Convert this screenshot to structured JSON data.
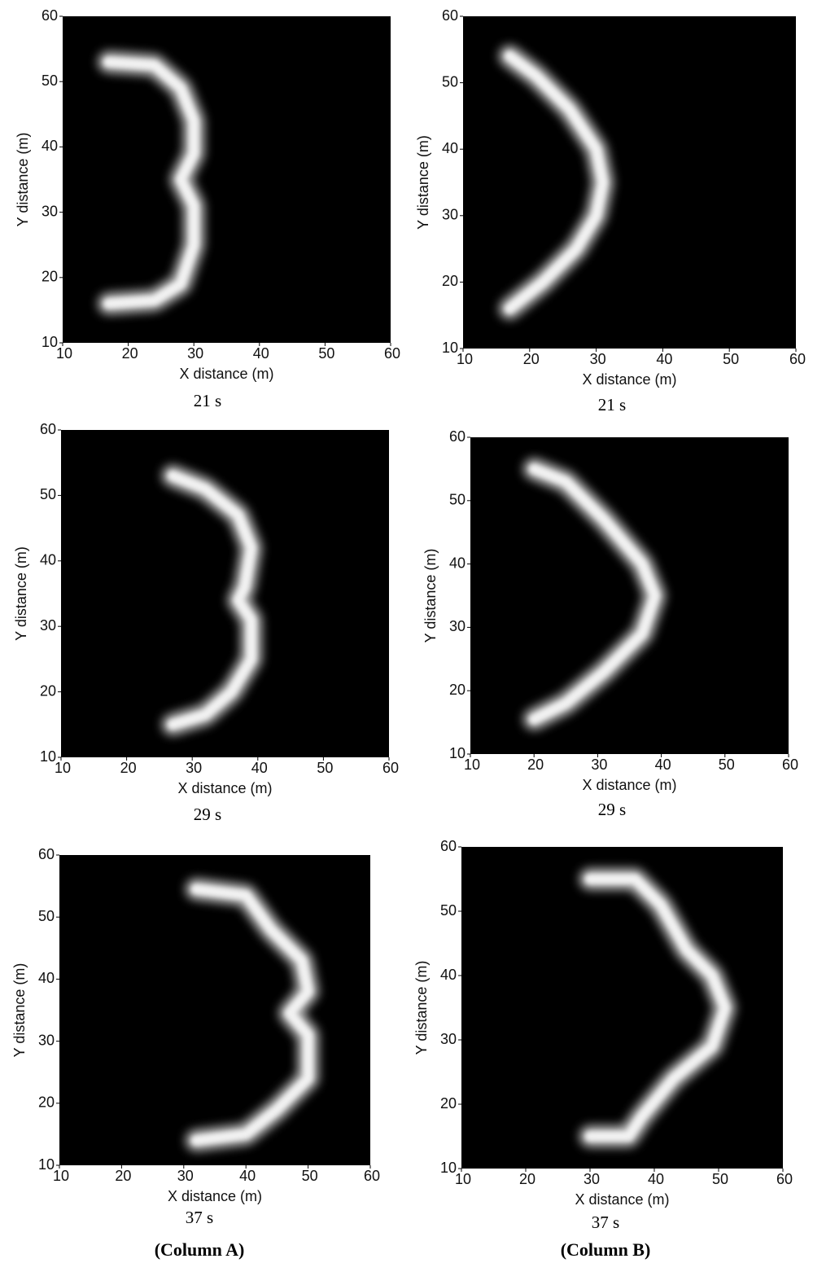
{
  "chart_data": [
    {
      "type": "line",
      "caption": "21 s",
      "x_label": "X distance (m)",
      "y_label": "Y distance (m)",
      "color": "#ffffff",
      "x": [
        17,
        24,
        28,
        30,
        30,
        28,
        30,
        30,
        28,
        24,
        17
      ],
      "values": [
        53,
        52.5,
        49,
        44,
        39,
        35,
        31,
        25,
        19,
        16.5,
        16
      ],
      "xlim": [
        10,
        60
      ],
      "ylim": [
        10,
        60
      ],
      "xticks": [
        10,
        20,
        30,
        40,
        50,
        60
      ],
      "yticks": [
        10,
        20,
        30,
        40,
        50,
        60
      ]
    },
    {
      "type": "line",
      "caption": "21 s",
      "x_label": "X distance (m)",
      "y_label": "Y distance (m)",
      "color": "#ffffff",
      "x": [
        17,
        21,
        26,
        30,
        31,
        30,
        27,
        22,
        17
      ],
      "values": [
        54,
        51,
        46,
        40,
        35,
        30,
        25,
        20,
        16
      ],
      "xlim": [
        10,
        60
      ],
      "ylim": [
        10,
        60
      ],
      "xticks": [
        10,
        20,
        30,
        40,
        50,
        60
      ],
      "yticks": [
        10,
        20,
        30,
        40,
        50,
        60
      ]
    },
    {
      "type": "line",
      "caption": "29 s",
      "x_label": "X distance (m)",
      "y_label": "Y distance (m)",
      "color": "#ffffff",
      "x": [
        27,
        32,
        37,
        39,
        38,
        37,
        39,
        39,
        36,
        32,
        27
      ],
      "values": [
        53,
        51,
        47,
        42,
        36,
        34,
        31,
        25,
        20,
        16.5,
        15
      ],
      "xlim": [
        10,
        60
      ],
      "ylim": [
        10,
        60
      ],
      "xticks": [
        10,
        20,
        30,
        40,
        50,
        60
      ],
      "yticks": [
        10,
        20,
        30,
        40,
        50,
        60
      ]
    },
    {
      "type": "line",
      "caption": "29 s",
      "x_label": "X distance (m)",
      "y_label": "Y distance (m)",
      "color": "#ffffff",
      "x": [
        20,
        25,
        31,
        37,
        39,
        37,
        31,
        25,
        20
      ],
      "values": [
        55,
        53,
        47,
        40,
        35,
        29,
        23,
        18,
        15.5
      ],
      "xlim": [
        10,
        60
      ],
      "ylim": [
        10,
        60
      ],
      "xticks": [
        10,
        20,
        30,
        40,
        50,
        60
      ],
      "yticks": [
        10,
        20,
        30,
        40,
        50,
        60
      ]
    },
    {
      "type": "line",
      "caption": "37 s",
      "x_label": "X distance (m)",
      "y_label": "Y distance (m)",
      "color": "#ffffff",
      "x": [
        32,
        40,
        44,
        49,
        50,
        47,
        50,
        50,
        45,
        40,
        32
      ],
      "values": [
        54.5,
        53.5,
        48,
        43,
        38,
        34.5,
        31,
        24,
        19,
        15,
        14
      ],
      "xlim": [
        10,
        60
      ],
      "ylim": [
        10,
        60
      ],
      "xticks": [
        10,
        20,
        30,
        40,
        50,
        60
      ],
      "yticks": [
        10,
        20,
        30,
        40,
        50,
        60
      ]
    },
    {
      "type": "line",
      "caption": "37 s",
      "x_label": "X distance (m)",
      "y_label": "Y distance (m)",
      "color": "#ffffff",
      "x": [
        30,
        37,
        41,
        45,
        49,
        51,
        49,
        43,
        38,
        36,
        30
      ],
      "values": [
        55,
        55,
        51,
        44,
        40,
        35,
        29,
        24,
        18,
        15,
        15
      ],
      "xlim": [
        10,
        60
      ],
      "ylim": [
        10,
        60
      ],
      "xticks": [
        10,
        20,
        30,
        40,
        50,
        60
      ],
      "yticks": [
        10,
        20,
        30,
        40,
        50,
        60
      ]
    }
  ],
  "column_labels": [
    "(Column A)",
    "(Column B)"
  ]
}
